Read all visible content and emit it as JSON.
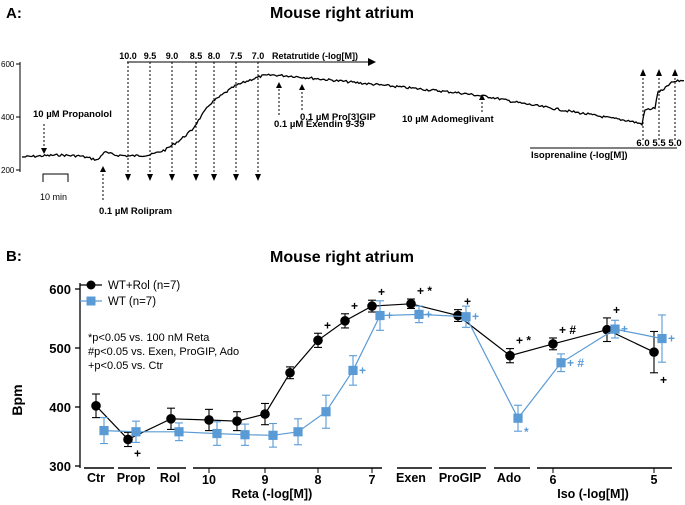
{
  "panel_a": {
    "label": "A:",
    "title": "Mouse right atrium",
    "y_ticks": [
      "600",
      "400",
      "200"
    ],
    "scale_bar": "10 min",
    "reta_doses": [
      "10.0",
      "9.5",
      "9.0",
      "8.5",
      "8.0",
      "7.5",
      "7.0"
    ],
    "reta_label": "Retatrutide (-log[M])",
    "iso_doses": [
      "6.0",
      "5.5",
      "5.0"
    ],
    "iso_label": "Isoprenaline (-log[M])",
    "annotations": {
      "propanolol": "10 µM Propanolol",
      "rolipram": "0.1 µM Rolipram",
      "exendin": "0.1 µM Exendin 9-39",
      "progip": "0.1 µM Pro[3]GIP",
      "adomeglivant": "10 µM Adomeglivant"
    }
  },
  "chart_data": {
    "type": "scatter",
    "panel_label": "B:",
    "title": "Mouse right atrium",
    "ylabel": "Bpm",
    "ylim": [
      300,
      600
    ],
    "y_ticks": [
      300,
      400,
      500,
      600
    ],
    "legend_position": "top-left",
    "groups": [
      {
        "label": "Ctr"
      },
      {
        "label": "Prop"
      },
      {
        "label": "Rol"
      },
      {
        "label": "Reta (-log[M])",
        "tick_labels": [
          "10",
          "9",
          "8",
          "7"
        ]
      },
      {
        "label": "Exen"
      },
      {
        "label": "ProGIP"
      },
      {
        "label": "Ado"
      },
      {
        "label": "Iso (-log[M])",
        "tick_labels": [
          "6",
          "5"
        ]
      }
    ],
    "notes": [
      "*p<0.05 vs. 100 nM Reta",
      "#p<0.05 vs. Exen, ProGIP, Ado",
      "+p<0.05 vs. Ctr"
    ],
    "series": [
      {
        "name": "WT+Rol (n=7)",
        "color": "#000000",
        "marker": "circle",
        "points": [
          {
            "x": "Ctr",
            "y": 402,
            "err": 20
          },
          {
            "x": "Prop",
            "y": 345,
            "err": 12,
            "sig": "+"
          },
          {
            "x": "Rol",
            "y": 380,
            "err": 18
          },
          {
            "x": "Reta 10",
            "y": 378,
            "err": 18
          },
          {
            "x": "Reta 9.5",
            "y": 376,
            "err": 16
          },
          {
            "x": "Reta 9",
            "y": 388,
            "err": 18
          },
          {
            "x": "Reta 8.5",
            "y": 458,
            "err": 10
          },
          {
            "x": "Reta 8",
            "y": 513,
            "err": 12,
            "sig": "+"
          },
          {
            "x": "Reta 7.5",
            "y": 546,
            "err": 12,
            "sig": "+"
          },
          {
            "x": "Reta 7",
            "y": 571,
            "err": 10,
            "sig": "+"
          },
          {
            "x": "Exen",
            "y": 575,
            "err": 8,
            "sig": "+ *"
          },
          {
            "x": "ProGIP",
            "y": 555,
            "err": 10,
            "sig": "+"
          },
          {
            "x": "Ado",
            "y": 487,
            "err": 12,
            "sig": "+ *"
          },
          {
            "x": "Iso 6",
            "y": 507,
            "err": 10,
            "sig": "+ #"
          },
          {
            "x": "Iso 5.5",
            "y": 531,
            "err": 20,
            "sig": "+"
          },
          {
            "x": "Iso 5",
            "y": 493,
            "err": 35,
            "sig": "+"
          }
        ]
      },
      {
        "name": "WT (n=7)",
        "color": "#5b9bd5",
        "marker": "square",
        "points": [
          {
            "x": "Ctr",
            "y": 360,
            "err": 22
          },
          {
            "x": "Prop",
            "y": 358,
            "err": 18
          },
          {
            "x": "Rol",
            "y": 358,
            "err": 15
          },
          {
            "x": "Reta 10",
            "y": 355,
            "err": 20
          },
          {
            "x": "Reta 9.5",
            "y": 353,
            "err": 18
          },
          {
            "x": "Reta 9",
            "y": 352,
            "err": 20
          },
          {
            "x": "Reta 8.5",
            "y": 358,
            "err": 22
          },
          {
            "x": "Reta 8",
            "y": 392,
            "err": 28
          },
          {
            "x": "Reta 7.5",
            "y": 462,
            "err": 25,
            "sig": "+"
          },
          {
            "x": "Reta 7",
            "y": 555,
            "err": 25,
            "sig": "+"
          },
          {
            "x": "Exen",
            "y": 557,
            "err": 14,
            "sig": "+"
          },
          {
            "x": "ProGIP",
            "y": 553,
            "err": 18,
            "sig": "+"
          },
          {
            "x": "Ado",
            "y": 381,
            "err": 22,
            "sig": "*"
          },
          {
            "x": "Iso 6",
            "y": 475,
            "err": 15,
            "sig": "+ #"
          },
          {
            "x": "Iso 5.5",
            "y": 532,
            "err": 15,
            "sig": "+"
          },
          {
            "x": "Iso 5",
            "y": 516,
            "err": 40,
            "sig": "+"
          }
        ]
      }
    ]
  }
}
